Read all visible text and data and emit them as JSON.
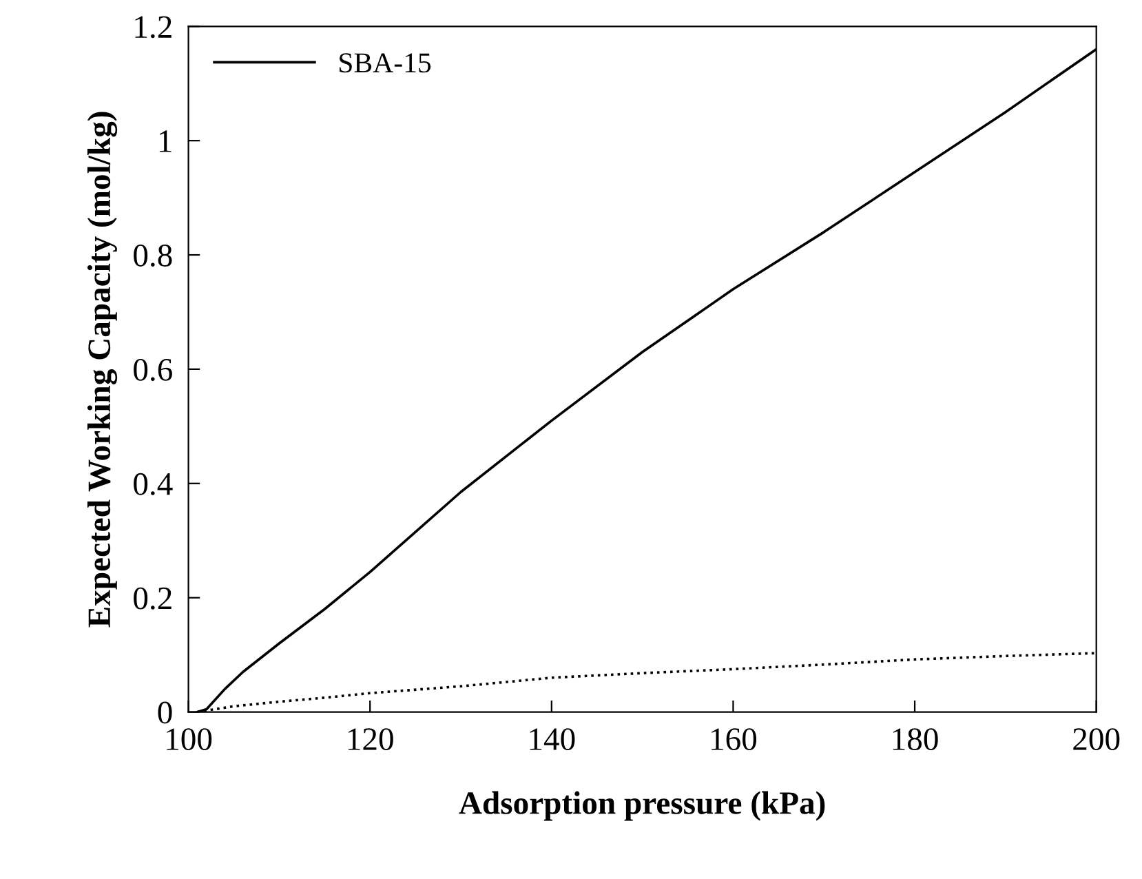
{
  "chart_data": {
    "type": "line",
    "xlabel": "Adsorption pressure (kPa)",
    "ylabel": "Expected Working Capacity (mol/kg)",
    "xlim": [
      100,
      200
    ],
    "xticks": [
      100,
      120,
      140,
      160,
      180,
      200
    ],
    "ylim": [
      0,
      1.2
    ],
    "yticks": [
      0,
      0.2,
      0.4,
      0.6,
      0.8,
      {
        "value": 1,
        "label": "1"
      },
      1.2
    ],
    "grid": false,
    "legend": "top left",
    "series": [
      {
        "color": "#000000",
        "line_style": "dotted",
        "x": [
          101,
          105,
          110,
          115,
          120,
          130,
          140,
          150,
          160,
          170,
          180,
          190,
          200
        ],
        "values": [
          0,
          0.01,
          0.018,
          0.025,
          0.033,
          0.045,
          0.06,
          0.068,
          0.075,
          0.083,
          0.092,
          0.098,
          0.103
        ]
      },
      {
        "name": "SBA-15",
        "color": "#000000",
        "line_style": "solid",
        "x": [
          101,
          102,
          104,
          106,
          110,
          115,
          120,
          130,
          140,
          150,
          160,
          170,
          180,
          190,
          200
        ],
        "values": [
          0,
          0.005,
          0.04,
          0.07,
          0.12,
          0.18,
          0.245,
          0.385,
          0.51,
          0.63,
          0.74,
          0.84,
          0.945,
          1.05,
          1.16
        ]
      }
    ]
  }
}
